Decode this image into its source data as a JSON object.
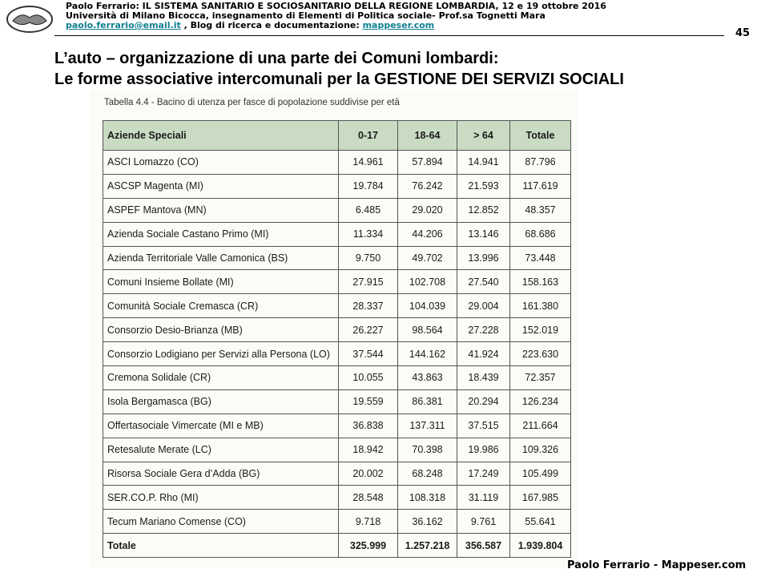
{
  "header": {
    "line1": "Paolo Ferrario: IL SISTEMA SANITARIO E SOCIOSANITARIO DELLA REGIONE LOMBARDIA, 12 e 19 ottobre 2016",
    "line2": "Università di Milano Bicocca, insegnamento  di Elementi di Politica sociale- Prof.sa Tognetti Mara",
    "email": "paolo.ferrario@email.it",
    "blog_text": " , Blog di ricerca e documentazione: ",
    "site": "mappeser.com",
    "page_number": "45"
  },
  "title": {
    "line1": "L’auto – organizzazione di una parte dei Comuni lombardi:",
    "line2": "Le forme associative intercomunali per la GESTIONE DEI SERVIZI SOCIALI"
  },
  "table": {
    "caption": "Tabella 4.4 - Bacino di utenza per fasce di popolazione suddivise per età",
    "header": [
      "Aziende Speciali",
      "0-17",
      "18-64",
      "> 64",
      "Totale"
    ],
    "rows": [
      [
        "ASCI Lomazzo (CO)",
        "14.961",
        "57.894",
        "14.941",
        "87.796"
      ],
      [
        "ASCSP Magenta (MI)",
        "19.784",
        "76.242",
        "21.593",
        "117.619"
      ],
      [
        "ASPEF Mantova (MN)",
        "6.485",
        "29.020",
        "12.852",
        "48.357"
      ],
      [
        "Azienda Sociale Castano Primo (MI)",
        "11.334",
        "44.206",
        "13.146",
        "68.686"
      ],
      [
        "Azienda Territoriale Valle Camonica (BS)",
        "9.750",
        "49.702",
        "13.996",
        "73.448"
      ],
      [
        "Comuni Insieme Bollate (MI)",
        "27.915",
        "102.708",
        "27.540",
        "158.163"
      ],
      [
        "Comunità Sociale Cremasca (CR)",
        "28.337",
        "104.039",
        "29.004",
        "161.380"
      ],
      [
        "Consorzio Desio-Brianza (MB)",
        "26.227",
        "98.564",
        "27.228",
        "152.019"
      ],
      [
        "Consorzio Lodigiano per Servizi alla Persona (LO)",
        "37.544",
        "144.162",
        "41.924",
        "223.630"
      ],
      [
        "Cremona Solidale (CR)",
        "10.055",
        "43.863",
        "18.439",
        "72.357"
      ],
      [
        "Isola Bergamasca (BG)",
        "19.559",
        "86.381",
        "20.294",
        "126.234"
      ],
      [
        "Offertasociale Vimercate (MI e MB)",
        "36.838",
        "137.311",
        "37.515",
        "211.664"
      ],
      [
        "Retesalute Merate (LC)",
        "18.942",
        "70.398",
        "19.986",
        "109.326"
      ],
      [
        "Risorsa Sociale Gera d’Adda (BG)",
        "20.002",
        "68.248",
        "17.249",
        "105.499"
      ],
      [
        "SER.CO.P. Rho (MI)",
        "28.548",
        "108.318",
        "31.119",
        "167.985"
      ],
      [
        "Tecum Mariano Comense (CO)",
        "9.718",
        "36.162",
        "9.761",
        "55.641"
      ]
    ],
    "total": [
      "Totale",
      "325.999",
      "1.257.218",
      "356.587",
      "1.939.804"
    ]
  },
  "footer": "Paolo Ferrario - Mappeser.com"
}
